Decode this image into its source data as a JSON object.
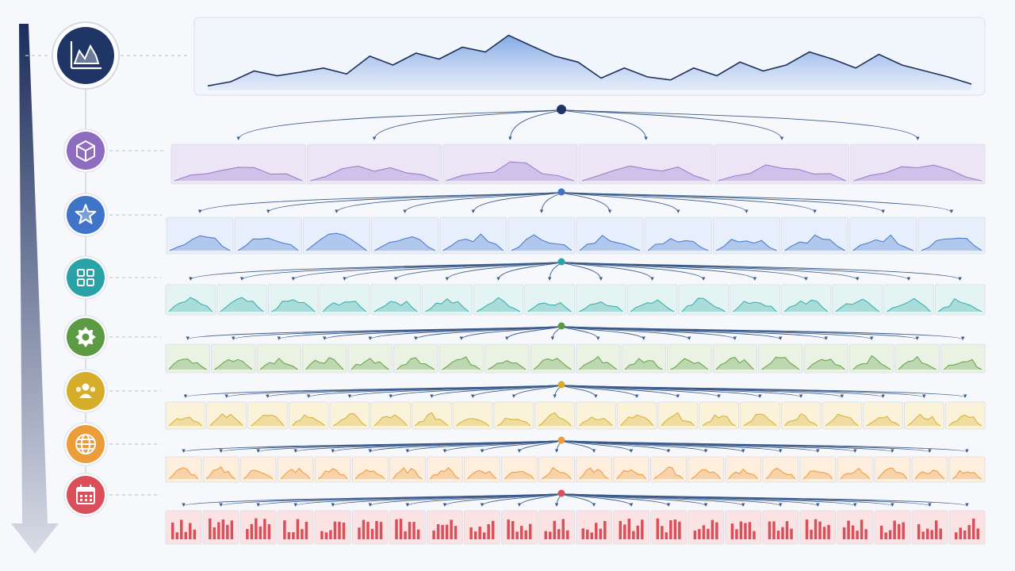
{
  "diagram": {
    "direction_arrow": {
      "gradient_top": "#1c2d5c",
      "gradient_bottom": "#d8dce6"
    },
    "root": {
      "icon": "area-chart-icon",
      "color": "#1f3566",
      "panel_fill": "#c9d9f2",
      "panel_stroke": "#d9deea",
      "line_color": "#1e2f5a"
    },
    "levels": [
      {
        "name": "level-1",
        "icon": "cube-icon",
        "color": "#8e6cc0",
        "cell_fill": "#ece5f6",
        "mark": "#9b7fd0",
        "cells": 6,
        "kind": "area"
      },
      {
        "name": "level-2",
        "icon": "star-icon",
        "color": "#3f74c8",
        "cell_fill": "#e6effb",
        "mark": "#4d7fd1",
        "cells": 12,
        "kind": "area"
      },
      {
        "name": "level-3",
        "icon": "grid-icon",
        "color": "#2aa3a8",
        "cell_fill": "#e4f4f3",
        "mark": "#3fb0ae",
        "cells": 16,
        "kind": "area"
      },
      {
        "name": "level-4",
        "icon": "gear-icon",
        "color": "#5d9a44",
        "cell_fill": "#e9f2e3",
        "mark": "#6ca651",
        "cells": 18,
        "kind": "area"
      },
      {
        "name": "level-5",
        "icon": "users-icon",
        "color": "#d6ad2a",
        "cell_fill": "#fbf3d9",
        "mark": "#d9b33a",
        "cells": 20,
        "kind": "area"
      },
      {
        "name": "level-6",
        "icon": "globe-icon",
        "color": "#ec9d3a",
        "cell_fill": "#fdeedd",
        "mark": "#ef9f44",
        "cells": 22,
        "kind": "area"
      },
      {
        "name": "level-7",
        "icon": "calendar-icon",
        "color": "#d9505a",
        "cell_fill": "#fbe3e4",
        "mark": "#d9505a",
        "cells": 22,
        "kind": "bars"
      }
    ],
    "connector_color": "#3b5b8c",
    "dashed_line_color": "#c3c8d2"
  }
}
